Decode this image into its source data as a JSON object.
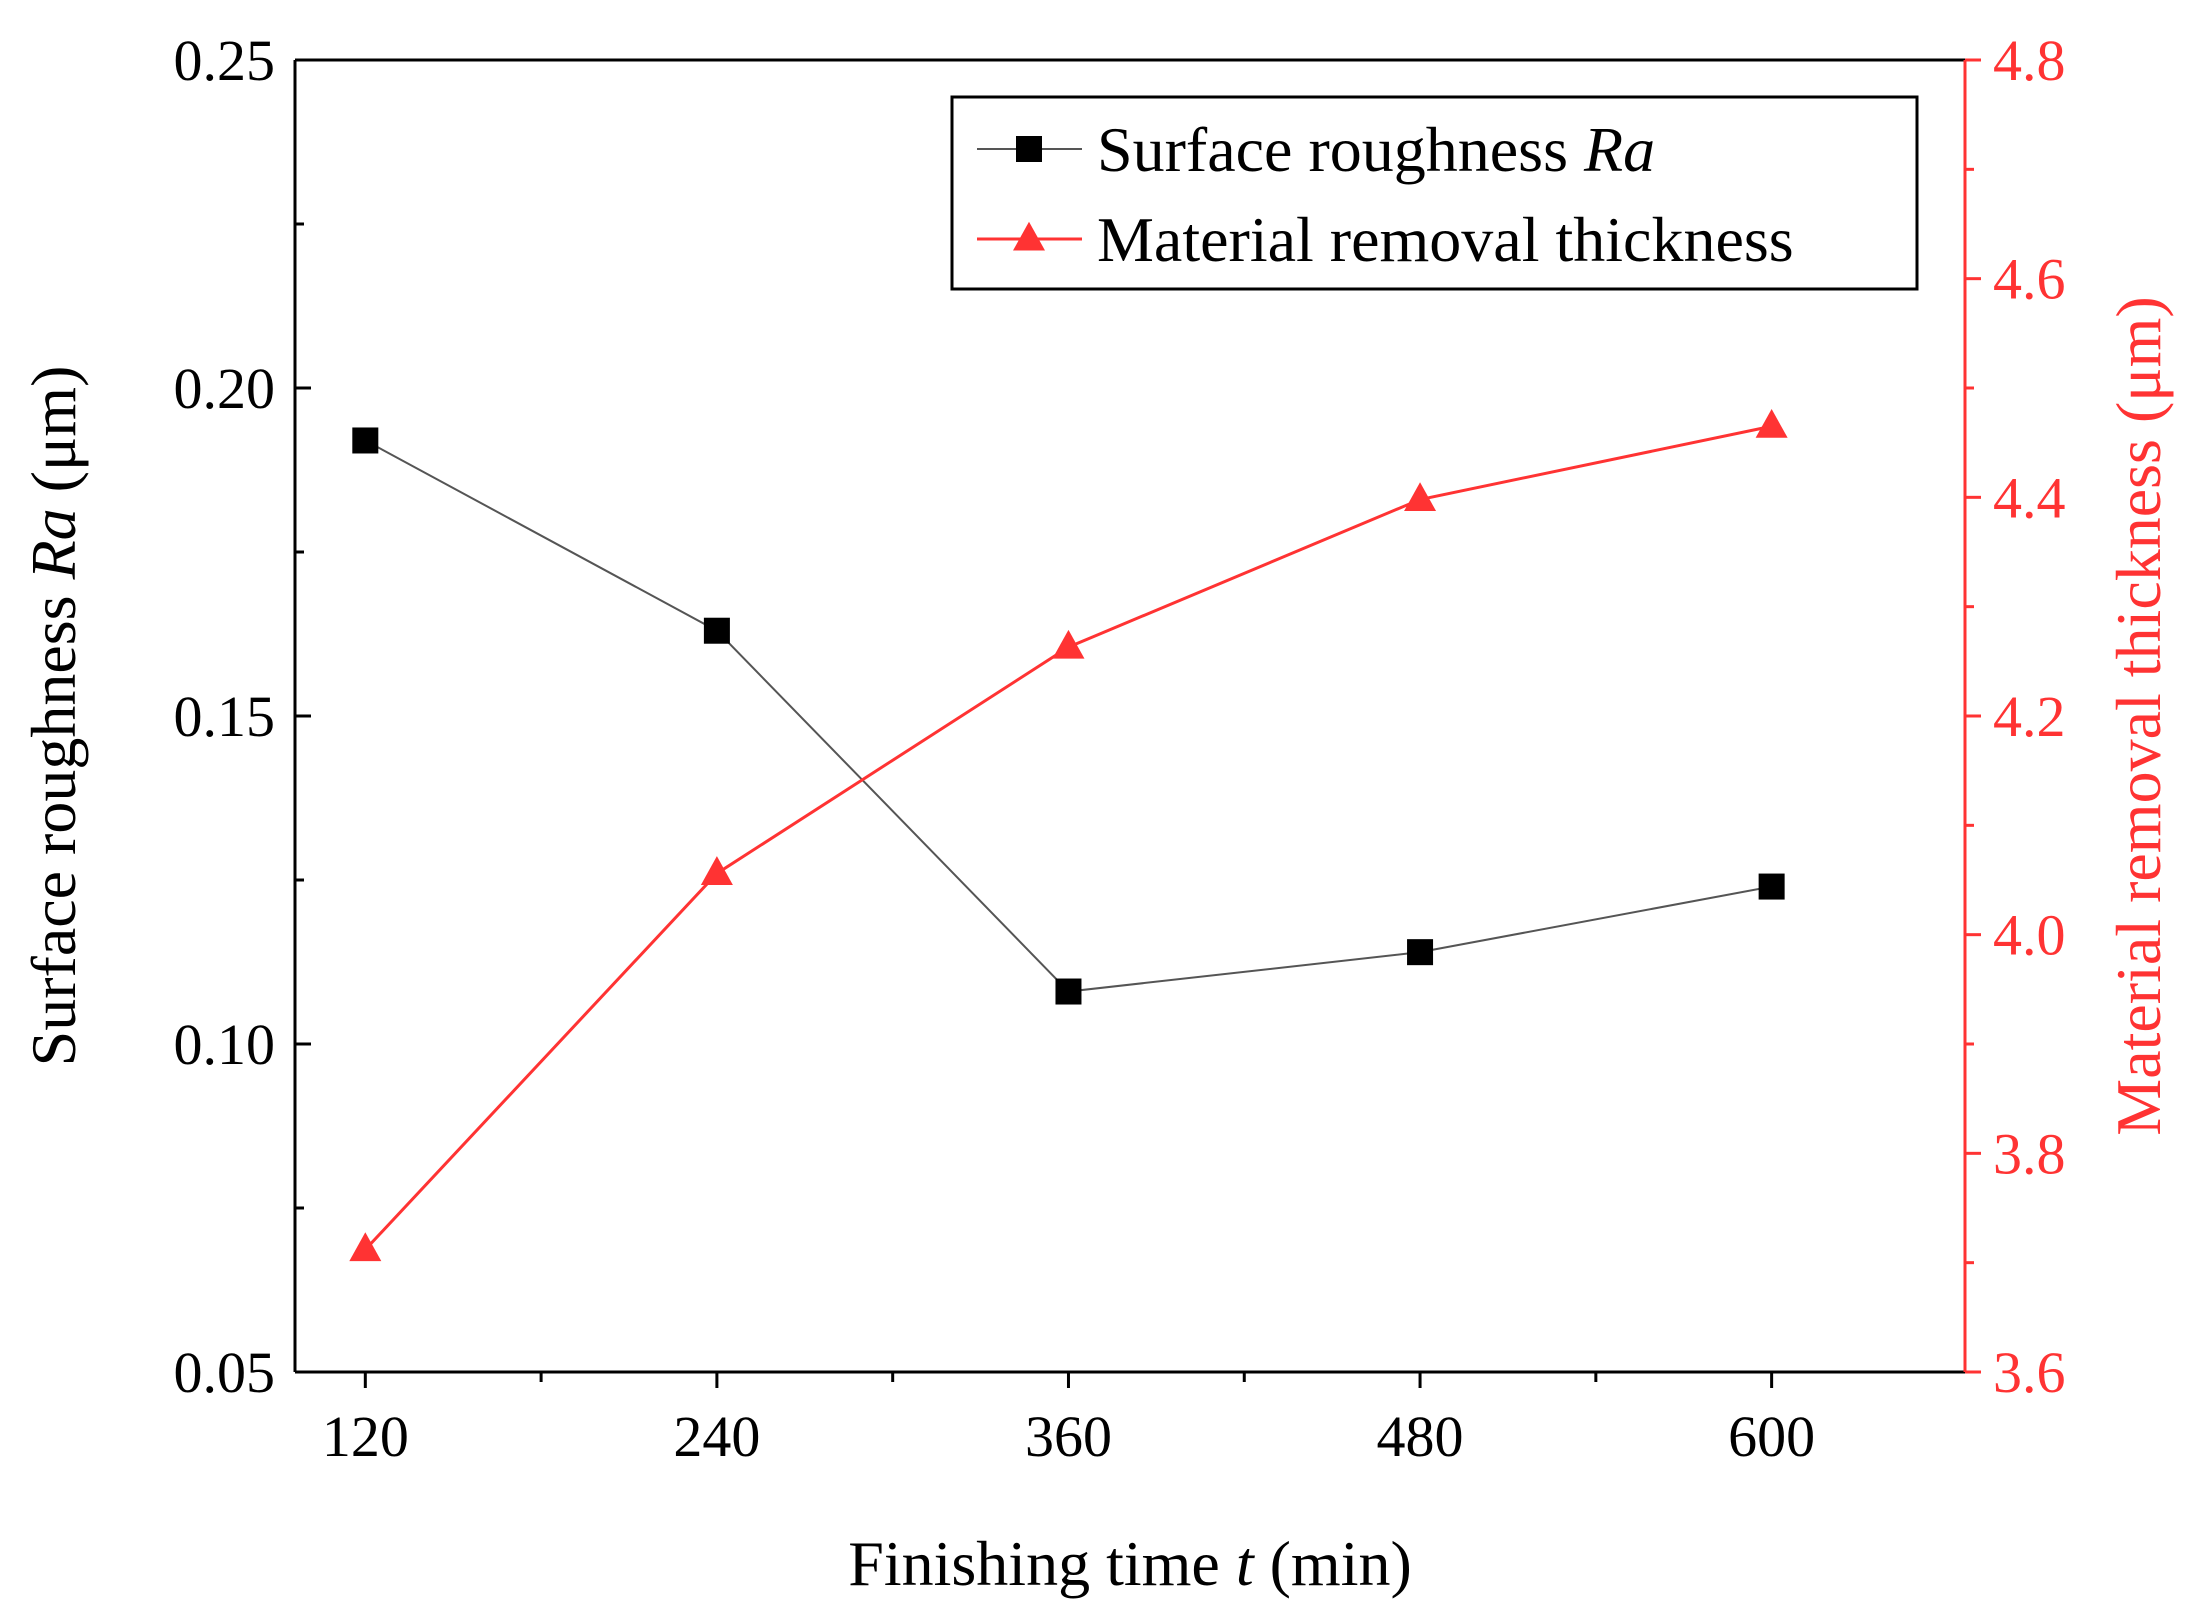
{
  "chart_data": {
    "type": "line",
    "x": [
      120,
      240,
      360,
      480,
      600
    ],
    "series": [
      {
        "name_main": "Surface roughness ",
        "name_italic": "Ra",
        "axis": "left",
        "color": "#000000",
        "line_color": "#555555",
        "marker": "square",
        "values": [
          0.192,
          0.163,
          0.108,
          0.114,
          0.124
        ]
      },
      {
        "name_main": "Material removal thickness",
        "name_italic": "",
        "axis": "right",
        "color": "#ff3333",
        "line_color": "#ff3333",
        "marker": "triangle",
        "values": [
          3.712,
          4.056,
          4.263,
          4.398,
          4.465
        ]
      }
    ],
    "xlabel": {
      "pre": "Finishing time ",
      "italic": "t",
      "post": " (min)"
    },
    "ylabel_left": {
      "pre": "Surface roughness ",
      "italic": "Ra",
      "post": " (μm)"
    },
    "ylabel_right": "Material removal thickness (μm)",
    "xlim": [
      96,
      666
    ],
    "ylim_left": [
      0.05,
      0.25
    ],
    "ylim_right": [
      3.6,
      4.8
    ],
    "x_ticks": [
      120,
      240,
      360,
      480,
      600
    ],
    "x_tick_labels": [
      "120",
      "240",
      "360",
      "480",
      "600"
    ],
    "x_minor_ticks": [
      180,
      300,
      420,
      540
    ],
    "y_left_ticks": [
      0.05,
      0.1,
      0.15,
      0.2,
      0.25
    ],
    "y_left_tick_labels": [
      "0.05",
      "0.10",
      "0.15",
      "0.20",
      "0.25"
    ],
    "y_left_minor_ticks": [
      0.075,
      0.125,
      0.175,
      0.225
    ],
    "y_right_ticks": [
      3.6,
      3.8,
      4.0,
      4.2,
      4.4,
      4.6,
      4.8
    ],
    "y_right_tick_labels": [
      "3.6",
      "3.8",
      "4.0",
      "4.2",
      "4.4",
      "4.6",
      "4.8"
    ],
    "y_right_minor_ticks": [
      3.7,
      3.9,
      4.1,
      4.3,
      4.5,
      4.7
    ],
    "legend_position": "top-right",
    "grid": false,
    "right_axis_color": "#ff3333"
  }
}
